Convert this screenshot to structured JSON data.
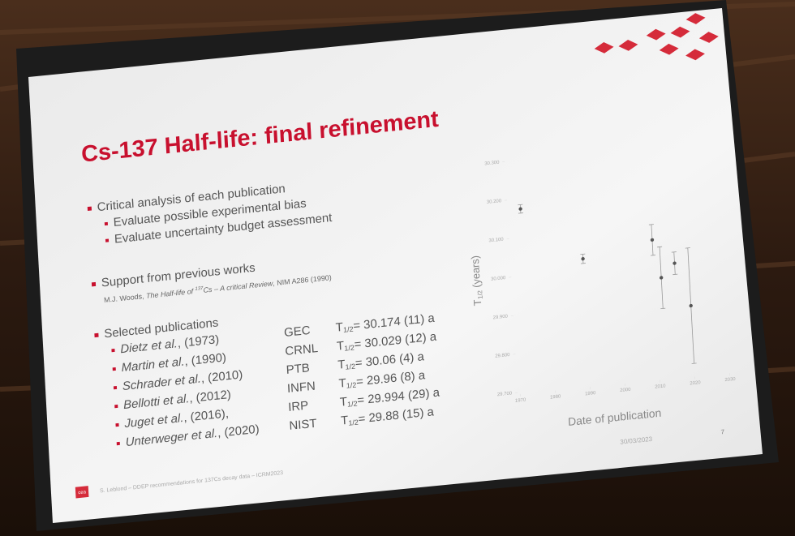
{
  "title": "Cs-137 Half-life: final refinement",
  "bullets": [
    {
      "text": "Critical analysis of each publication",
      "sub": [
        "Evaluate possible experimental bias",
        "Evaluate uncertainty budget assessment"
      ]
    },
    {
      "text": "Support from previous works"
    },
    {
      "text": "Selected publications"
    }
  ],
  "reference": {
    "author": "M.J. Woods, ",
    "title_pre": "The Half-life of ",
    "sup": "137",
    "title_post": "Cs – A critical Review",
    "source": ", NIM A286 (1990)"
  },
  "half_life": {
    "symbol": "T",
    "subscript": "1/2"
  },
  "publications": [
    {
      "authors": "Dietz et al.",
      "year": ", (1973)",
      "lab": "GEC",
      "value": "= 30.174 (11) a"
    },
    {
      "authors": "Martin et al.",
      "year": ", (1990)",
      "lab": "CRNL",
      "value": "= 30.029 (12) a"
    },
    {
      "authors": "Schrader et al.",
      "year": ", (2010)",
      "lab": "PTB",
      "value": "= 30.06 (4) a"
    },
    {
      "authors": "Bellotti et al.",
      "year": ", (2012)",
      "lab": "INFN",
      "value": "= 29.96 (8) a"
    },
    {
      "authors": "Juget et al.",
      "year": ", (2016),",
      "lab": "IRP",
      "value": "= 29.994 (29) a"
    },
    {
      "authors": "Unterweger et al.",
      "year": ", (2020)",
      "lab": "NIST",
      "value": "= 29.88 (15) a"
    }
  ],
  "chart": {
    "type": "scatter",
    "y_label": " (years)",
    "x_label": "Date of publication",
    "x": [
      1973,
      1990,
      2010,
      2012,
      2016,
      2020
    ],
    "y": [
      30.174,
      30.029,
      30.06,
      29.96,
      29.994,
      29.88
    ],
    "errors": [
      0.011,
      0.012,
      0.04,
      0.08,
      0.029,
      0.15
    ],
    "xlim": [
      1970,
      2030
    ],
    "ylim": [
      29.7,
      30.3
    ],
    "xticks": [
      1970,
      1980,
      1990,
      2000,
      2010,
      2020,
      2030
    ],
    "yticks": [
      {
        "value": 29.7,
        "label": "29.700"
      },
      {
        "value": 29.8,
        "label": "29.800"
      },
      {
        "value": 29.9,
        "label": "29.900"
      },
      {
        "value": 30.0,
        "label": "30.000"
      },
      {
        "value": 30.1,
        "label": "30.100"
      },
      {
        "value": 30.2,
        "label": "30.200"
      },
      {
        "value": 30.3,
        "label": "30.300"
      }
    ]
  },
  "footer": "S. Leblond – DDEP recommendations for 137Cs decay data – ICRM2023",
  "logo": "cea",
  "date": "30/03/2023",
  "page": "7"
}
